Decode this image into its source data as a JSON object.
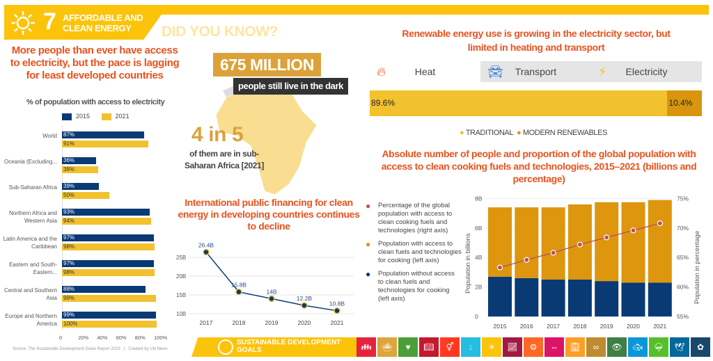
{
  "header": {
    "goal_number": "7",
    "goal_name": "AFFORDABLE AND CLEAN ENERGY",
    "did_you_know": "DID YOU KNOW?",
    "accent": "#fcc30b"
  },
  "electricity": {
    "title": "More people than ever have access to electricity, but the pace is lagging for least developed countries",
    "subtitle": "% of population with access to electricity",
    "legend": [
      "2015",
      "2021"
    ],
    "colors": {
      "2015": "#0a3a74",
      "2021": "#f2c12e"
    },
    "x_ticks": [
      "0",
      "20%",
      "40%",
      "60%",
      "80%",
      "100%"
    ]
  },
  "chart_data": [
    {
      "type": "bar",
      "title": "% of population with access to electricity",
      "categories": [
        "World",
        "Oceania (Excluding...",
        "Sub-Saharan Africa",
        "Northern Africa and Western Asia",
        "Latin America and the Caribbean",
        "Eastern and South-Eastern...",
        "Central and Southern Asia",
        "Europe and Northern America"
      ],
      "series": [
        {
          "name": "2015",
          "values": [
            87,
            36,
            39,
            93,
            97,
            97,
            88,
            99
          ],
          "labels": [
            "87%",
            "36%",
            "39%",
            "93%",
            "97%",
            "97%",
            "88%",
            "99%"
          ]
        },
        {
          "name": "2021",
          "values": [
            91,
            38,
            50,
            94,
            98,
            98,
            99,
            100
          ],
          "labels": [
            "91%",
            "38%",
            "50%",
            "94%",
            "98%",
            "98%",
            "99%",
            "100%"
          ]
        }
      ],
      "xlim": [
        0,
        100
      ]
    },
    {
      "type": "line",
      "title": "International public financing for clean energy in developing countries continues to decline",
      "x": [
        "2017",
        "2018",
        "2019",
        "2020",
        "2021"
      ],
      "values": [
        26.4,
        15.8,
        14,
        12.2,
        10.8
      ],
      "labels": [
        "26.4B",
        "15.8B",
        "14B",
        "12.2B",
        "10.8B"
      ],
      "y_ticks": [
        "10B",
        "15B",
        "20B",
        "25B"
      ],
      "ylim": [
        10,
        25
      ]
    },
    {
      "type": "bar",
      "stacked": true,
      "title": "Renewable energy use is growing in the electricity sector, but limited in heating and transport",
      "tabs": [
        "Heat",
        "Transport",
        "Electricity"
      ],
      "active_tab": "Heat",
      "series": [
        {
          "name": "TRADITIONAL",
          "value": 89.6,
          "label": "89.6%",
          "color": "#f2c12e"
        },
        {
          "name": "MODERN RENEWABLES",
          "value": 10.4,
          "label": "10.4%",
          "color": "#d9950e"
        }
      ]
    },
    {
      "type": "bar",
      "stacked": true,
      "title": "Absolute number of people and proportion of the global population with access to clean cooking fuels and technologies, 2015–2021 (billions and percentage)",
      "categories": [
        "2015",
        "2016",
        "2017",
        "2018",
        "2019",
        "2020",
        "2021"
      ],
      "series": [
        {
          "name": "Population without access to clean fuels and technologies for cooking (left axis)",
          "values": [
            2.7,
            2.6,
            2.5,
            2.5,
            2.4,
            2.3,
            2.3
          ],
          "color": "#0a3a74"
        },
        {
          "name": "Population with access to clean fuels and technologies for cooking (left axis)",
          "values": [
            4.7,
            4.8,
            4.9,
            5.1,
            5.35,
            5.45,
            5.6
          ],
          "color": "#dd960e"
        },
        {
          "name": "Percentage of the global population with access to clean cooking fuels and technologies (right axis)",
          "values": [
            63.3,
            64.6,
            65.8,
            67.2,
            68.4,
            69.6,
            70.8
          ],
          "color": "#b5525a",
          "axis": "right"
        }
      ],
      "ylabel": "Population in billions",
      "y2label": "Population in percentage",
      "y_ticks": [
        "0",
        "2B",
        "4B",
        "6B",
        "8B"
      ],
      "y2_ticks": [
        "55%",
        "60%",
        "65%",
        "70%",
        "75%"
      ],
      "ylim": [
        0,
        8
      ],
      "y2lim": [
        55,
        75
      ]
    }
  ],
  "callout": {
    "big_number": "675 MILLION",
    "big_sub": "people still live in the dark",
    "ratio": "4 in 5",
    "ratio_sub": "of them are in sub-Saharan Africa [2021]"
  },
  "footer": {
    "source": "Source: The Sustainable Development Goals Report 2023",
    "sep": "|",
    "credit": "Created by UN News",
    "sdg_logo": "SUSTAINABLE DEVELOPMENT GOALS",
    "goal_colors": [
      "#e5243b",
      "#dda63a",
      "#4c9f38",
      "#c5192d",
      "#ff3a21",
      "#26bde2",
      "#fcc30b",
      "#a21942",
      "#fd6925",
      "#dd1367",
      "#fd9d24",
      "#bf8b2e",
      "#3f7e44",
      "#0a97d9",
      "#56c02b",
      "#00689d",
      "#19486a"
    ]
  }
}
